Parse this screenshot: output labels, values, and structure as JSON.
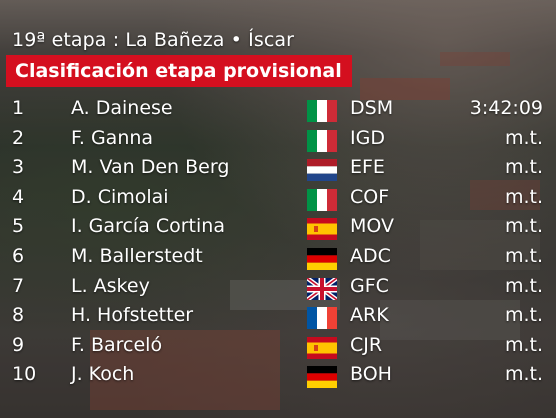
{
  "header": {
    "stage": "19ª etapa : La Bañeza • Íscar",
    "title": "Clasificación etapa provisional"
  },
  "standings": [
    {
      "pos": "1",
      "name": "A. Dainese",
      "flag": "italy-flag-icon",
      "team": "DSM",
      "time": "3:42:09"
    },
    {
      "pos": "2",
      "name": "F. Ganna",
      "flag": "italy-flag-icon",
      "team": "IGD",
      "time": "m.t."
    },
    {
      "pos": "3",
      "name": "M. Van Den Berg",
      "flag": "netherlands-flag-icon",
      "team": "EFE",
      "time": "m.t."
    },
    {
      "pos": "4",
      "name": "D. Cimolai",
      "flag": "italy-flag-icon",
      "team": "COF",
      "time": "m.t."
    },
    {
      "pos": "5",
      "name": "I. García Cortina",
      "flag": "spain-flag-icon",
      "team": "MOV",
      "time": "m.t."
    },
    {
      "pos": "6",
      "name": "M. Ballerstedt",
      "flag": "germany-flag-icon",
      "team": "ADC",
      "time": "m.t."
    },
    {
      "pos": "7",
      "name": "L. Askey",
      "flag": "uk-flag-icon",
      "team": "GFC",
      "time": "m.t."
    },
    {
      "pos": "8",
      "name": "H. Hofstetter",
      "flag": "france-flag-icon",
      "team": "ARK",
      "time": "m.t."
    },
    {
      "pos": "9",
      "name": "F. Barceló",
      "flag": "spain-flag-icon",
      "team": "CJR",
      "time": "m.t."
    },
    {
      "pos": "10",
      "name": "J. Koch",
      "flag": "germany-flag-icon",
      "team": "BOH",
      "time": "m.t."
    }
  ],
  "colors": {
    "banner": "#d40f1f",
    "text": "#ffffff"
  }
}
